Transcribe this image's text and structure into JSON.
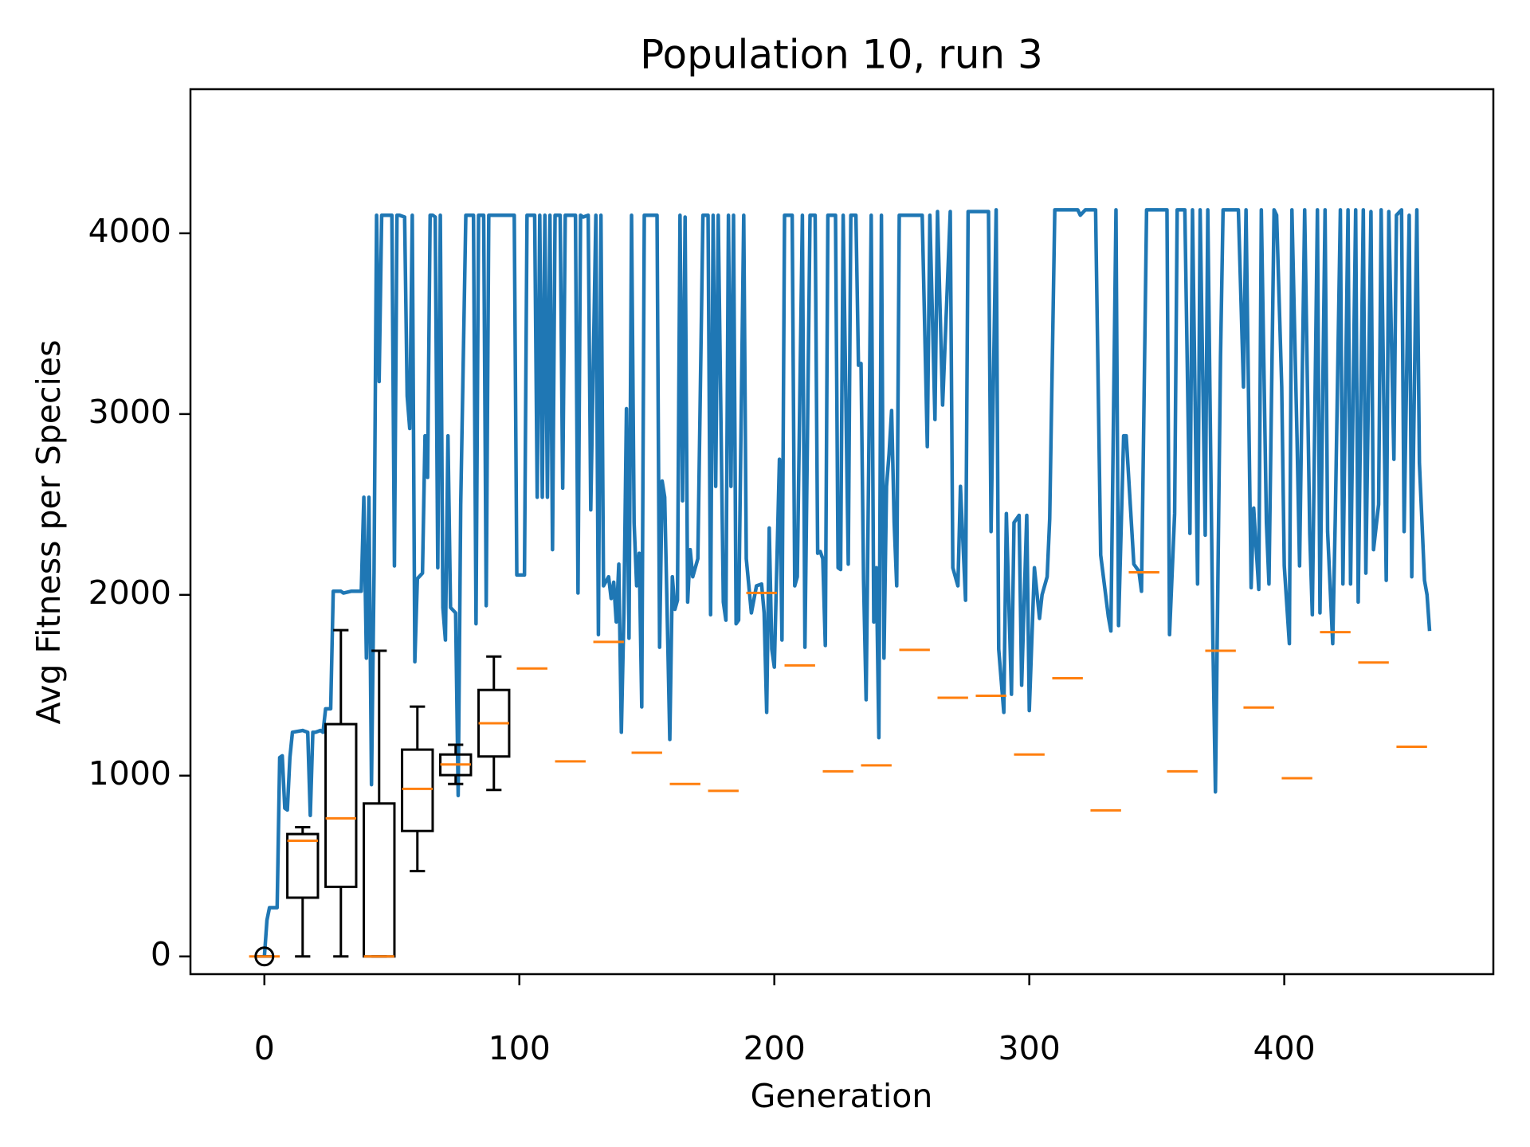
{
  "chart_data": {
    "type": "line",
    "title": "Population 10, run 3",
    "xlabel": "Generation",
    "ylabel": "Avg Fitness per Species",
    "xlim": [
      -29,
      482
    ],
    "ylim": [
      -98,
      4797
    ],
    "xticks": [
      0,
      100,
      200,
      300,
      400
    ],
    "yticks": [
      0,
      1000,
      2000,
      3000,
      4000
    ],
    "series": [
      {
        "color": "#1f77b4",
        "x": [
          0,
          1,
          2,
          5,
          6,
          7,
          8,
          9,
          10,
          11,
          15,
          17,
          18,
          19,
          20,
          22,
          23,
          24,
          26,
          27,
          30,
          31,
          34,
          38,
          39,
          40,
          41,
          42,
          43,
          44,
          45,
          46,
          50,
          51,
          52,
          53,
          55,
          56,
          57,
          58,
          59,
          60,
          62,
          63,
          64,
          65,
          66,
          67,
          68,
          69,
          70,
          71,
          72,
          73,
          75,
          76,
          77,
          79,
          82,
          83,
          84,
          86,
          87,
          88,
          98,
          99,
          102,
          103,
          106,
          107,
          108,
          109,
          110,
          111,
          112,
          113,
          114,
          116,
          117,
          118,
          122,
          123,
          124,
          125,
          127,
          128,
          130,
          131,
          132,
          133,
          135,
          136,
          137,
          138,
          139,
          140,
          141,
          142,
          143,
          144,
          145,
          146,
          147,
          148,
          149,
          154,
          155,
          156,
          157,
          158,
          159,
          160,
          161,
          162,
          163,
          164,
          165,
          166,
          167,
          168,
          169,
          170,
          172,
          174,
          175,
          176,
          177,
          178,
          180,
          181,
          182,
          183,
          184,
          185,
          186,
          187,
          188,
          189,
          191,
          193,
          195,
          196,
          197,
          198,
          199,
          200,
          202,
          203,
          204,
          207,
          208,
          209,
          211,
          212,
          213,
          214,
          216,
          217,
          218,
          219,
          220,
          221,
          224,
          225,
          226,
          227,
          229,
          230,
          232,
          233,
          234,
          235,
          236,
          237,
          238,
          239,
          240,
          241,
          242,
          243,
          244,
          245,
          246,
          247,
          248,
          249,
          258,
          260,
          261,
          263,
          264,
          266,
          267,
          269,
          270,
          272,
          273,
          275,
          276,
          284,
          285,
          287,
          288,
          290,
          291,
          293,
          294,
          296,
          297,
          299,
          300,
          302,
          304,
          305,
          307,
          308,
          310,
          319,
          320,
          322,
          326,
          328,
          331,
          332,
          334,
          335,
          337,
          338,
          341,
          343,
          344,
          346,
          354,
          355,
          357,
          358,
          361,
          363,
          364,
          366,
          367,
          369,
          370,
          372,
          373,
          375,
          376,
          382,
          384,
          385,
          387,
          388,
          390,
          391,
          393,
          394,
          396,
          397,
          399,
          400,
          402,
          403,
          405,
          406,
          408,
          410,
          411,
          413,
          414,
          416,
          417,
          419,
          420,
          422,
          423,
          425,
          426,
          428,
          429,
          431,
          432,
          434,
          435,
          437,
          438,
          440,
          441,
          443,
          444,
          446,
          447,
          449,
          450,
          452,
          453,
          455,
          456,
          457
        ],
        "values": [
          0,
          200,
          270,
          270,
          1100,
          1110,
          820,
          810,
          1100,
          1240,
          1250,
          1240,
          780,
          1240,
          1240,
          1250,
          1240,
          1370,
          1370,
          2020,
          2020,
          2010,
          2020,
          2020,
          2540,
          1650,
          2540,
          950,
          2120,
          4100,
          3180,
          4100,
          4100,
          2160,
          4100,
          4100,
          4090,
          3100,
          2920,
          4100,
          1630,
          2090,
          2120,
          2880,
          2650,
          4100,
          4100,
          4090,
          2150,
          4100,
          1930,
          1750,
          2880,
          1930,
          1900,
          890,
          2500,
          4100,
          4100,
          1840,
          4100,
          4100,
          1940,
          4100,
          4100,
          2110,
          2110,
          4100,
          4100,
          2540,
          4100,
          2540,
          4100,
          2540,
          4100,
          2250,
          4100,
          4100,
          2590,
          4100,
          4100,
          2010,
          4100,
          4090,
          4100,
          2470,
          4100,
          1780,
          4100,
          2050,
          2100,
          1980,
          2070,
          1850,
          2170,
          1240,
          1900,
          3030,
          1760,
          4100,
          2400,
          2050,
          2230,
          1380,
          4100,
          4100,
          1710,
          2630,
          2540,
          1880,
          1200,
          2100,
          1920,
          1970,
          4100,
          2520,
          4090,
          1960,
          2250,
          2100,
          2150,
          2200,
          4100,
          4100,
          1890,
          4100,
          2600,
          4100,
          1960,
          1860,
          4100,
          2600,
          4100,
          1840,
          1860,
          2990,
          4100,
          2200,
          1900,
          2050,
          2060,
          1900,
          1350,
          2370,
          1700,
          1600,
          2750,
          1750,
          4100,
          4100,
          2050,
          2100,
          4100,
          1710,
          2900,
          4100,
          4100,
          2230,
          2240,
          2200,
          1720,
          4100,
          4100,
          2150,
          2140,
          4100,
          2170,
          4100,
          4100,
          3270,
          3280,
          2080,
          1420,
          2700,
          4100,
          1850,
          2150,
          1210,
          4100,
          1650,
          2600,
          2780,
          3020,
          2400,
          2050,
          4100,
          4100,
          2820,
          4100,
          2970,
          4120,
          3050,
          3400,
          4120,
          2150,
          2050,
          2600,
          1970,
          4120,
          4120,
          2350,
          4130,
          1700,
          1350,
          2450,
          1450,
          2400,
          2440,
          1500,
          2440,
          1360,
          2150,
          1870,
          2000,
          2100,
          2420,
          4130,
          4130,
          4100,
          4130,
          4130,
          2220,
          1880,
          1800,
          4130,
          1830,
          2880,
          2880,
          2170,
          2130,
          2020,
          4130,
          4130,
          1780,
          2450,
          4130,
          4130,
          2340,
          4130,
          2060,
          4130,
          2330,
          4130,
          1750,
          910,
          3320,
          4130,
          4130,
          3150,
          4130,
          2040,
          2480,
          2030,
          4130,
          2400,
          2060,
          4130,
          4100,
          3150,
          2160,
          1730,
          4130,
          2870,
          2160,
          4130,
          2340,
          1890,
          4130,
          1900,
          4130,
          2350,
          1730,
          2420,
          4130,
          2060,
          4130,
          2060,
          4130,
          1960,
          4130,
          2120,
          4120,
          2250,
          2500,
          4130,
          2080,
          4120,
          2750,
          4100,
          4130,
          2350,
          4100,
          2100,
          4130,
          2730,
          2080,
          2000,
          1800
        ]
      }
    ],
    "box_color": "#000000",
    "median_color": "#ff7f0e",
    "boxes": [
      {
        "x": 0,
        "whislo": 0,
        "q1": 0,
        "med": 0,
        "q3": 0,
        "whishi": 0,
        "fliers": [
          0
        ]
      },
      {
        "x": 15,
        "whislo": 0,
        "q1": 325,
        "med": 640,
        "q3": 677,
        "whishi": 715
      },
      {
        "x": 30,
        "whislo": 0,
        "q1": 385,
        "med": 764,
        "q3": 1285,
        "whishi": 1805
      },
      {
        "x": 45,
        "whislo": 0,
        "q1": 0,
        "med": 0,
        "q3": 846,
        "whishi": 1691
      },
      {
        "x": 60,
        "whislo": 472,
        "q1": 694,
        "med": 927,
        "q3": 1144,
        "whishi": 1382
      },
      {
        "x": 75,
        "whislo": 954,
        "q1": 1003,
        "med": 1062,
        "q3": 1117,
        "whishi": 1171
      },
      {
        "x": 90,
        "whislo": 921,
        "q1": 1106,
        "med": 1290,
        "q3": 1474,
        "whishi": 1659
      },
      {
        "x": 105,
        "med": 1593
      },
      {
        "x": 120,
        "med": 1079
      },
      {
        "x": 135,
        "med": 1740
      },
      {
        "x": 150,
        "med": 1127
      },
      {
        "x": 165,
        "med": 954
      },
      {
        "x": 180,
        "med": 916
      },
      {
        "x": 195,
        "med": 2011
      },
      {
        "x": 210,
        "med": 1610
      },
      {
        "x": 225,
        "med": 1024
      },
      {
        "x": 240,
        "med": 1057
      },
      {
        "x": 255,
        "med": 1696
      },
      {
        "x": 270,
        "med": 1431
      },
      {
        "x": 285,
        "med": 1442
      },
      {
        "x": 300,
        "med": 1117
      },
      {
        "x": 315,
        "med": 1539
      },
      {
        "x": 330,
        "med": 808
      },
      {
        "x": 345,
        "med": 2125
      },
      {
        "x": 360,
        "med": 1024
      },
      {
        "x": 375,
        "med": 1691
      },
      {
        "x": 390,
        "med": 1377
      },
      {
        "x": 405,
        "med": 986
      },
      {
        "x": 420,
        "med": 1794
      },
      {
        "x": 435,
        "med": 1626
      },
      {
        "x": 450,
        "med": 1160
      }
    ]
  }
}
